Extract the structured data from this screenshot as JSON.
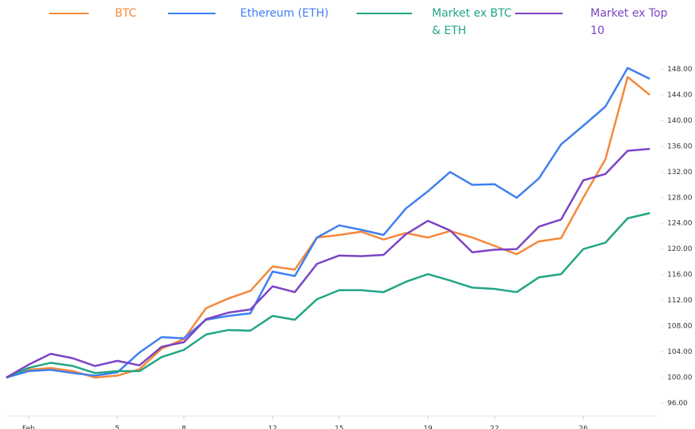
{
  "chart_data": {
    "type": "line",
    "x": [
      0,
      1,
      2,
      3,
      4,
      5,
      6,
      7,
      8,
      9,
      10,
      11,
      12,
      13,
      14,
      15,
      16,
      17,
      18,
      19,
      20,
      21,
      22,
      23,
      24,
      25,
      26,
      27,
      28,
      29
    ],
    "xlim": [
      0,
      29
    ],
    "xticks": [
      {
        "value": 1,
        "label": "Feb"
      },
      5,
      8,
      12,
      15,
      19,
      22,
      26
    ],
    "ylim": [
      95,
      150
    ],
    "yticks": [
      {
        "value": 96,
        "label": "96.00"
      },
      {
        "value": 100,
        "label": "100.00"
      },
      {
        "value": 104,
        "label": "104.00"
      },
      {
        "value": 108,
        "label": "108.00"
      },
      {
        "value": 112,
        "label": "112.00"
      },
      {
        "value": 116,
        "label": "116.00"
      },
      {
        "value": 120,
        "label": "120.00"
      },
      {
        "value": 124,
        "label": "124.00"
      },
      {
        "value": 128,
        "label": "128.00"
      },
      {
        "value": 132,
        "label": "132.00"
      },
      {
        "value": 136,
        "label": "136.00"
      },
      {
        "value": 140,
        "label": "140.00"
      },
      {
        "value": 144,
        "label": "144.00"
      },
      {
        "value": 148,
        "label": "148.00"
      }
    ],
    "grid": false,
    "legend": "top",
    "series": [
      {
        "name": "BTC",
        "color": "#f5883a",
        "values": [
          100,
          101.2,
          101.5,
          101,
          100,
          100.3,
          101.3,
          104.5,
          106,
          110.8,
          112.3,
          113.5,
          117.3,
          116.8,
          121.8,
          122.2,
          122.7,
          121.5,
          122.5,
          121.8,
          122.8,
          121.8,
          120.5,
          119.2,
          121.2,
          121.7,
          128,
          134,
          146.8,
          144
        ]
      },
      {
        "name": "Ethereum (ETH)",
        "color": "#3f7ff0",
        "values": [
          100,
          101,
          101.2,
          100.7,
          100.3,
          100.8,
          103.9,
          106.3,
          106.1,
          109,
          109.6,
          110,
          116.5,
          115.8,
          121.8,
          123.7,
          123,
          122.2,
          126.3,
          129,
          132,
          130,
          130.1,
          128,
          131,
          136.3,
          139.2,
          142.2,
          148.2,
          146.5
        ]
      },
      {
        "name": "Market ex BTC & ETH",
        "color": "#22a584",
        "values": [
          100,
          101.5,
          102.3,
          101.8,
          100.7,
          101,
          101,
          103.2,
          104.3,
          106.7,
          107.4,
          107.3,
          109.6,
          109,
          112.2,
          113.6,
          113.6,
          113.3,
          114.9,
          116.1,
          115.1,
          114,
          113.8,
          113.3,
          115.6,
          116.1,
          120,
          121,
          124.8,
          125.6
        ]
      },
      {
        "name": "Market ex Top 10",
        "color": "#7b44c4",
        "values": [
          100,
          102,
          103.7,
          103,
          101.8,
          102.6,
          101.9,
          104.8,
          105.5,
          109.1,
          110.1,
          110.6,
          114.2,
          113.3,
          117.7,
          119,
          118.9,
          119.1,
          122.3,
          124.4,
          122.9,
          119.5,
          119.9,
          120,
          123.5,
          124.6,
          130.7,
          131.7,
          135.3,
          135.6
        ]
      }
    ]
  }
}
